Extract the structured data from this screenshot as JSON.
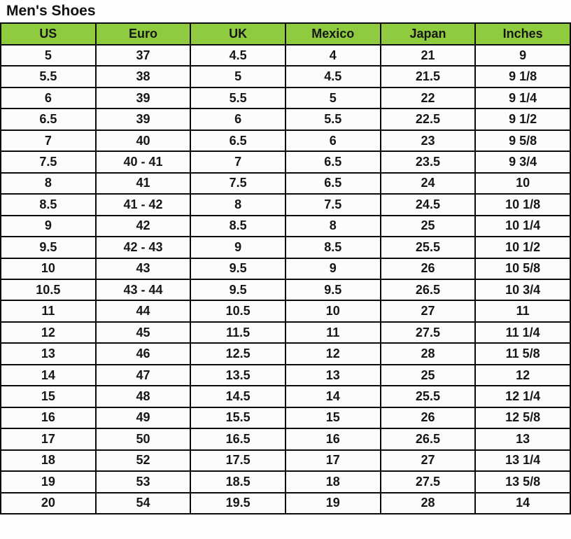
{
  "page": {
    "title": "Men's Shoes"
  },
  "colors": {
    "header_bg": "#8FCB3F",
    "border": "#0B0B0B",
    "cell_bg": "#FCFCFC",
    "text": "#161616"
  },
  "chart_data": {
    "type": "table",
    "title": "Men's Shoes",
    "columns": [
      "US",
      "Euro",
      "UK",
      "Mexico",
      "Japan",
      "Inches"
    ],
    "rows": [
      [
        "5",
        "37",
        "4.5",
        "4",
        "21",
        "9"
      ],
      [
        "5.5",
        "38",
        "5",
        "4.5",
        "21.5",
        "9 1/8"
      ],
      [
        "6",
        "39",
        "5.5",
        "5",
        "22",
        "9 1/4"
      ],
      [
        "6.5",
        "39",
        "6",
        "5.5",
        "22.5",
        "9 1/2"
      ],
      [
        "7",
        "40",
        "6.5",
        "6",
        "23",
        "9 5/8"
      ],
      [
        "7.5",
        "40 - 41",
        "7",
        "6.5",
        "23.5",
        "9 3/4"
      ],
      [
        "8",
        "41",
        "7.5",
        "6.5",
        "24",
        "10"
      ],
      [
        "8.5",
        "41 - 42",
        "8",
        "7.5",
        "24.5",
        "10 1/8"
      ],
      [
        "9",
        "42",
        "8.5",
        "8",
        "25",
        "10 1/4"
      ],
      [
        "9.5",
        "42 - 43",
        "9",
        "8.5",
        "25.5",
        "10 1/2"
      ],
      [
        "10",
        "43",
        "9.5",
        "9",
        "26",
        "10 5/8"
      ],
      [
        "10.5",
        "43 - 44",
        "9.5",
        "9.5",
        "26.5",
        "10 3/4"
      ],
      [
        "11",
        "44",
        "10.5",
        "10",
        "27",
        "11"
      ],
      [
        "12",
        "45",
        "11.5",
        "11",
        "27.5",
        "11 1/4"
      ],
      [
        "13",
        "46",
        "12.5",
        "12",
        "28",
        "11 5/8"
      ],
      [
        "14",
        "47",
        "13.5",
        "13",
        "25",
        "12"
      ],
      [
        "15",
        "48",
        "14.5",
        "14",
        "25.5",
        "12 1/4"
      ],
      [
        "16",
        "49",
        "15.5",
        "15",
        "26",
        "12 5/8"
      ],
      [
        "17",
        "50",
        "16.5",
        "16",
        "26.5",
        "13"
      ],
      [
        "18",
        "52",
        "17.5",
        "17",
        "27",
        "13 1/4"
      ],
      [
        "19",
        "53",
        "18.5",
        "18",
        "27.5",
        "13 5/8"
      ],
      [
        "20",
        "54",
        "19.5",
        "19",
        "28",
        "14"
      ]
    ]
  }
}
